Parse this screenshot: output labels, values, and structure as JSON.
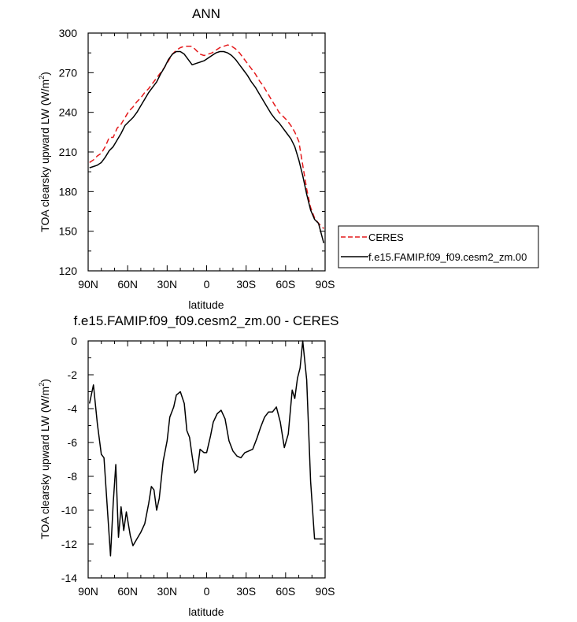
{
  "chart_data": [
    {
      "type": "line",
      "title": "ANN",
      "xlabel": "latitude",
      "ylabel_main": "TOA clearsky upward LW (W/m",
      "ylabel_sup": "2",
      "ylabel_close": ")",
      "xlim": [
        90,
        -90
      ],
      "ylim": [
        120,
        300
      ],
      "xticks": [
        {
          "value": 90,
          "label": "90N"
        },
        {
          "value": 60,
          "label": "60N"
        },
        {
          "value": 30,
          "label": "30N"
        },
        {
          "value": 0,
          "label": "0"
        },
        {
          "value": -30,
          "label": "30S"
        },
        {
          "value": -60,
          "label": "60S"
        },
        {
          "value": -90,
          "label": "90S"
        }
      ],
      "yticks": [
        {
          "value": 120,
          "label": "120"
        },
        {
          "value": 150,
          "label": "150"
        },
        {
          "value": 180,
          "label": "180"
        },
        {
          "value": 210,
          "label": "210"
        },
        {
          "value": 240,
          "label": "240"
        },
        {
          "value": 270,
          "label": "270"
        },
        {
          "value": 300,
          "label": "300"
        }
      ],
      "legend_position": "right",
      "series": [
        {
          "name": "CERES",
          "color": "#e41a1c",
          "dash": "dashed",
          "x": [
            89,
            86,
            83,
            80,
            77,
            74,
            71,
            68,
            65,
            62,
            59,
            56,
            53,
            50,
            47,
            44,
            41,
            38,
            35,
            32,
            29,
            26,
            23,
            20,
            17,
            14,
            11,
            8,
            5,
            2,
            -1,
            -4,
            -7,
            -10,
            -13,
            -16,
            -19,
            -22,
            -25,
            -28,
            -31,
            -34,
            -37,
            -40,
            -43,
            -46,
            -49,
            -52,
            -55,
            -58,
            -61,
            -64,
            -67,
            -70,
            -73,
            -76,
            -79,
            -82,
            -85,
            -89
          ],
          "y": [
            202,
            204,
            207,
            209,
            214,
            221,
            221,
            228,
            231,
            236,
            241,
            244,
            248,
            251,
            255,
            258,
            262,
            266,
            270,
            274,
            279,
            284,
            287,
            289,
            290,
            290,
            290,
            287,
            284,
            283,
            284,
            285,
            287,
            289,
            290,
            291,
            290,
            288,
            285,
            281,
            277,
            273,
            269,
            264,
            260,
            255,
            250,
            245,
            240,
            237,
            234,
            230,
            225,
            218,
            200,
            182,
            168,
            160,
            156,
            152
          ]
        },
        {
          "name": "f.e15.FAMIP.f09_f09.cesm2_zm.00",
          "color": "#000000",
          "dash": "solid",
          "x": [
            89,
            86,
            83,
            80,
            77,
            74,
            71,
            68,
            65,
            62,
            59,
            56,
            53,
            50,
            47,
            44,
            41,
            38,
            35,
            32,
            29,
            26,
            23,
            20,
            17,
            14,
            11,
            8,
            5,
            2,
            -1,
            -4,
            -7,
            -10,
            -13,
            -16,
            -19,
            -22,
            -25,
            -28,
            -31,
            -34,
            -37,
            -40,
            -43,
            -46,
            -49,
            -52,
            -55,
            -58,
            -61,
            -64,
            -67,
            -70,
            -73,
            -76,
            -79,
            -82,
            -85,
            -89
          ],
          "y": [
            198,
            199,
            200,
            202,
            206,
            211,
            214,
            219,
            224,
            230,
            233,
            236,
            240,
            245,
            250,
            255,
            259,
            263,
            269,
            274,
            280,
            284,
            286,
            286,
            284,
            280,
            276,
            277,
            278,
            279,
            281,
            283,
            285,
            286,
            286,
            285,
            283,
            280,
            276,
            272,
            268,
            263,
            259,
            254,
            249,
            244,
            239,
            235,
            232,
            228,
            224,
            220,
            214,
            204,
            192,
            178,
            166,
            159,
            156,
            141
          ]
        }
      ]
    },
    {
      "type": "line",
      "title": "f.e15.FAMIP.f09_f09.cesm2_zm.00 - CERES",
      "xlabel": "latitude",
      "ylabel_main": "TOA clearsky upward LW (W/m",
      "ylabel_sup": "2",
      "ylabel_close": ")",
      "xlim": [
        90,
        -90
      ],
      "ylim": [
        -14,
        0
      ],
      "xticks": [
        {
          "value": 90,
          "label": "90N"
        },
        {
          "value": 60,
          "label": "60N"
        },
        {
          "value": 30,
          "label": "30N"
        },
        {
          "value": 0,
          "label": "0"
        },
        {
          "value": -30,
          "label": "30S"
        },
        {
          "value": -60,
          "label": "60S"
        },
        {
          "value": -90,
          "label": "90S"
        }
      ],
      "yticks": [
        {
          "value": -14,
          "label": "-14"
        },
        {
          "value": -12,
          "label": "-12"
        },
        {
          "value": -10,
          "label": "-10"
        },
        {
          "value": -8,
          "label": "-8"
        },
        {
          "value": -6,
          "label": "-6"
        },
        {
          "value": -4,
          "label": "-4"
        },
        {
          "value": -2,
          "label": "-2"
        },
        {
          "value": 0,
          "label": "0"
        }
      ],
      "series": [
        {
          "name": "",
          "color": "#000000",
          "dash": "solid",
          "x": [
            89,
            86,
            83,
            80,
            78,
            75,
            73,
            71,
            69,
            67,
            65,
            63,
            61,
            58,
            56,
            53,
            50,
            47,
            44,
            42,
            40,
            38,
            36,
            33,
            30,
            28,
            25,
            23,
            20,
            17,
            15,
            13,
            11,
            9,
            7,
            5,
            2,
            0,
            -3,
            -5,
            -8,
            -11,
            -14,
            -17,
            -20,
            -23,
            -26,
            -29,
            -32,
            -35,
            -38,
            -41,
            -44,
            -47,
            -50,
            -53,
            -56,
            -59,
            -62,
            -65,
            -67,
            -69,
            -71,
            -73,
            -76,
            -79,
            -82,
            -85,
            -88
          ],
          "y": [
            -3.7,
            -2.6,
            -4.9,
            -6.7,
            -6.9,
            -10.4,
            -12.7,
            -9.6,
            -7.3,
            -11.6,
            -9.8,
            -11.2,
            -10.1,
            -11.5,
            -12.1,
            -11.7,
            -11.3,
            -10.8,
            -9.6,
            -8.6,
            -8.8,
            -10.0,
            -9.3,
            -7.1,
            -5.9,
            -4.5,
            -3.9,
            -3.2,
            -3.0,
            -3.7,
            -5.3,
            -5.7,
            -6.8,
            -7.8,
            -7.6,
            -6.4,
            -6.6,
            -6.6,
            -5.6,
            -4.8,
            -4.3,
            -4.1,
            -4.6,
            -5.9,
            -6.5,
            -6.8,
            -6.9,
            -6.6,
            -6.5,
            -6.4,
            -5.8,
            -5.1,
            -4.5,
            -4.2,
            -4.2,
            -3.9,
            -4.8,
            -6.3,
            -5.5,
            -2.9,
            -3.4,
            -2.2,
            -1.6,
            0.0,
            -2.3,
            -8.3,
            -11.7,
            -11.7,
            -11.7
          ]
        }
      ]
    }
  ]
}
